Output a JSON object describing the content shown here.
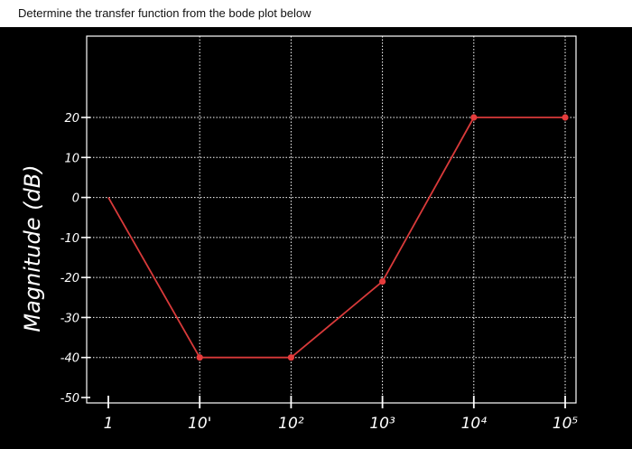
{
  "question": {
    "text": "Determine the transfer function from the bode plot below"
  },
  "colors": {
    "background": "#000000",
    "header_bg": "#ffffff",
    "plot_bg": "#ffffff",
    "grid": "#ffffff",
    "line": "#d93a3a",
    "marker": "#e53c3c",
    "handwriting": "#ffffff"
  },
  "chart_data": {
    "type": "line",
    "title": "",
    "xlabel": "",
    "ylabel": "Magnitude (dB)",
    "x_scale": "log",
    "xlim": [
      1,
      100000
    ],
    "ylim": [
      -50,
      20
    ],
    "x_ticks": [
      1,
      10,
      100,
      1000,
      10000,
      100000
    ],
    "x_tick_labels": [
      "1",
      "10'",
      "10²",
      "10³",
      "10⁴",
      "10⁵"
    ],
    "y_ticks": [
      20,
      10,
      0,
      -10,
      -20,
      -30,
      -40,
      -50
    ],
    "y_tick_labels": [
      "20",
      "10",
      "0",
      "-10",
      "-20",
      "-30",
      "-40",
      "-50"
    ],
    "grid": true,
    "series": [
      {
        "name": "",
        "x": [
          1,
          10,
          100,
          1000,
          10000,
          100000
        ],
        "y": [
          0,
          -40,
          -40,
          -21,
          20,
          20
        ],
        "markers": [
          false,
          true,
          true,
          true,
          true,
          true
        ]
      }
    ]
  }
}
